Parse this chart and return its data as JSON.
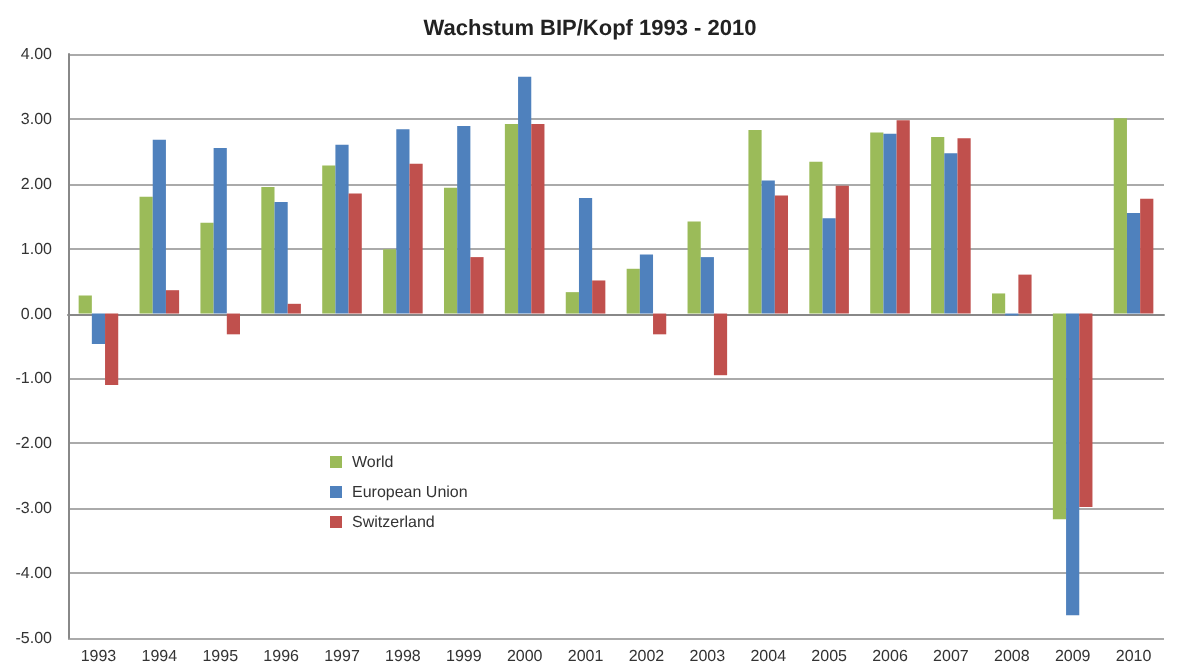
{
  "chart_data": {
    "type": "bar",
    "title": "Wachstum BIP/Kopf 1993 - 2010",
    "categories": [
      "1993",
      "1994",
      "1995",
      "1996",
      "1997",
      "1998",
      "1999",
      "2000",
      "2001",
      "2002",
      "2003",
      "2004",
      "2005",
      "2006",
      "2007",
      "2008",
      "2009",
      "2010"
    ],
    "series": [
      {
        "name": "World",
        "color": "#9bbb59",
        "values": [
          0.28,
          1.8,
          1.4,
          1.95,
          2.28,
          0.99,
          1.94,
          2.92,
          0.33,
          0.69,
          1.42,
          2.83,
          2.34,
          2.79,
          2.72,
          0.31,
          -3.17,
          3.01
        ]
      },
      {
        "name": "European Union",
        "color": "#4f81bd",
        "values": [
          -0.47,
          2.68,
          2.55,
          1.72,
          2.6,
          2.84,
          2.89,
          3.65,
          1.78,
          0.91,
          0.87,
          2.05,
          1.47,
          2.77,
          2.47,
          -0.03,
          -4.65,
          1.55
        ]
      },
      {
        "name": "Switzerland",
        "color": "#c0504d",
        "values": [
          -1.1,
          0.36,
          -0.32,
          0.15,
          1.85,
          2.31,
          0.87,
          2.92,
          0.51,
          -0.32,
          -0.95,
          1.82,
          1.97,
          2.98,
          2.7,
          0.6,
          -2.98,
          1.77
        ]
      }
    ],
    "ylim": [
      -5,
      4
    ],
    "yticks": [
      {
        "value": -5,
        "label": "-5.00"
      },
      {
        "value": -4,
        "label": "-4.00"
      },
      {
        "value": -3,
        "label": "-3.00"
      },
      {
        "value": -2,
        "label": "-2.00"
      },
      {
        "value": -1,
        "label": "-1.00"
      },
      {
        "value": 0,
        "label": "0.00"
      },
      {
        "value": 1,
        "label": "1.00"
      },
      {
        "value": 2,
        "label": "2.00"
      },
      {
        "value": 3,
        "label": "3.00"
      },
      {
        "value": 4,
        "label": "4.00"
      }
    ],
    "grid": "y",
    "legend": "bottom left"
  }
}
